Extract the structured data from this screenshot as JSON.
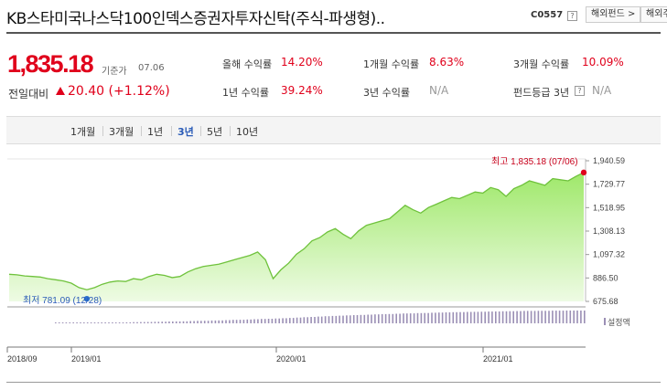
{
  "header": {
    "title": "KB스타미국나스닥100인덱스증권자투자신탁(주식-파생형)..",
    "code": "C0557",
    "help_mark": "?",
    "nav_1": "해외펀드 >",
    "nav_2": "해외주"
  },
  "price": {
    "value": "1,835.18",
    "base_label": "기준가",
    "base_date": "07.06",
    "change_label": "전일대비",
    "change_value": "20.40 (+1.12%)"
  },
  "stats": [
    {
      "label": "올해 수익률",
      "value": "14.20%"
    },
    {
      "label": "1개월 수익률",
      "value": "8.63%"
    },
    {
      "label": "3개월 수익률",
      "value": "10.09%"
    },
    {
      "label": "1년 수익률",
      "value": "39.24%"
    },
    {
      "label": "3년 수익률",
      "value": "N/A"
    },
    {
      "label": "펀드등급 3년",
      "value": "N/A"
    }
  ],
  "tabs": [
    "1개월",
    "3개월",
    "1년",
    "3년",
    "5년",
    "10년"
  ],
  "active_tab": "3년",
  "colors": {
    "accent_red": "#e0001b",
    "accent_blue": "#2a5bb7",
    "area_fill": "#b8f08c",
    "line": "#6fc23c",
    "bars": "#9b8fb5"
  },
  "chart_data": {
    "type": "area",
    "title": "",
    "ylim": [
      675.68,
      1940.59
    ],
    "y_ticks": [
      "1,940.59",
      "1,729.77",
      "1,518.95",
      "1,308.13",
      "1,097.32",
      "886.50",
      "675.68"
    ],
    "x_ticks": [
      "2018/09",
      "2019/01",
      "2020/01",
      "2021/01"
    ],
    "high_label": "최고 1,835.18 (07/06)",
    "low_label": "최저 781.09 (12/28)",
    "legend": "설정액",
    "series": [
      {
        "name": "기준가",
        "values": [
          920,
          915,
          905,
          900,
          895,
          880,
          870,
          860,
          840,
          800,
          781.09,
          800,
          830,
          850,
          860,
          855,
          880,
          870,
          900,
          920,
          910,
          890,
          900,
          940,
          970,
          990,
          1000,
          1010,
          1030,
          1050,
          1070,
          1090,
          1120,
          1050,
          880,
          960,
          1020,
          1100,
          1150,
          1220,
          1250,
          1300,
          1330,
          1280,
          1240,
          1310,
          1360,
          1380,
          1400,
          1420,
          1480,
          1540,
          1500,
          1470,
          1520,
          1550,
          1580,
          1610,
          1600,
          1630,
          1660,
          1650,
          1700,
          1680,
          1620,
          1690,
          1720,
          1760,
          1740,
          1720,
          1780,
          1770,
          1760,
          1800,
          1835.18
        ]
      },
      {
        "name": "설정액",
        "values": [
          0.02,
          0.03,
          0.03,
          0.04,
          0.04,
          0.05,
          0.05,
          0.06,
          0.06,
          0.07,
          0.08,
          0.09,
          0.1,
          0.11,
          0.12,
          0.13,
          0.14,
          0.15,
          0.16,
          0.18,
          0.19,
          0.2,
          0.22,
          0.23,
          0.25,
          0.27,
          0.28,
          0.3,
          0.32,
          0.34,
          0.36,
          0.38,
          0.4,
          0.42,
          0.45,
          0.48,
          0.5,
          0.53,
          0.56,
          0.58,
          0.6,
          0.62,
          0.64,
          0.66,
          0.68,
          0.7,
          0.72,
          0.73,
          0.75,
          0.77,
          0.78,
          0.8,
          0.81,
          0.83,
          0.84,
          0.86,
          0.87,
          0.88,
          0.89,
          0.9,
          0.91,
          0.92,
          0.93,
          0.94,
          0.95,
          0.96,
          0.97,
          0.97,
          0.98,
          0.98,
          0.99,
          0.99,
          1.0,
          1.0,
          1.0
        ]
      }
    ]
  }
}
